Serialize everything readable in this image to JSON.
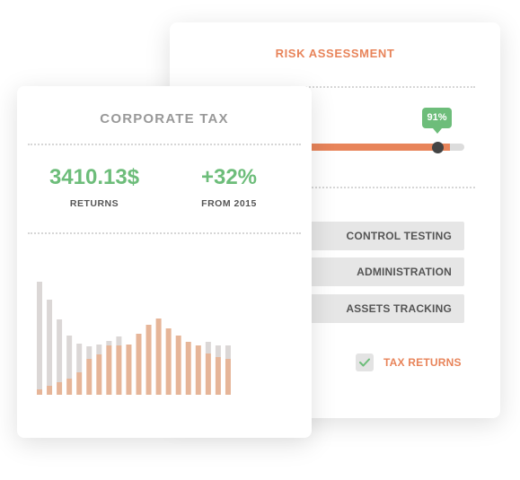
{
  "risk_card": {
    "title": "RISK ASSESSMENT",
    "slider": {
      "value_label": "91%",
      "value": 0.91
    },
    "buttons": [
      {
        "label": "CONTROL TESTING"
      },
      {
        "label": "ADMINISTRATION"
      },
      {
        "label": "ASSETS TRACKING"
      }
    ],
    "checkbox": {
      "label": "TAX RETURNS",
      "checked": true
    }
  },
  "tax_card": {
    "title": "CORPORATE TAX",
    "stats": [
      {
        "value": "3410.13$",
        "label": "RETURNS"
      },
      {
        "value": "+32%",
        "label": "FROM 2015"
      }
    ]
  },
  "colors": {
    "accent_orange": "#e8845a",
    "accent_green": "#6dbd7a",
    "bar_orange": "#e6b598",
    "bar_gray": "#dbd7d6"
  },
  "chart_data": {
    "type": "bar",
    "series": [
      {
        "values": [
          6,
          10,
          14,
          18,
          25,
          40,
          45,
          55,
          55,
          56,
          68,
          78,
          85,
          74,
          66,
          59,
          55,
          46,
          42,
          40
        ]
      },
      {
        "values": [
          120,
          96,
          70,
          48,
          32,
          14,
          11,
          5,
          10,
          0,
          0,
          0,
          0,
          0,
          0,
          0,
          0,
          13,
          13,
          15
        ]
      }
    ],
    "stacked": true,
    "grid": false
  }
}
